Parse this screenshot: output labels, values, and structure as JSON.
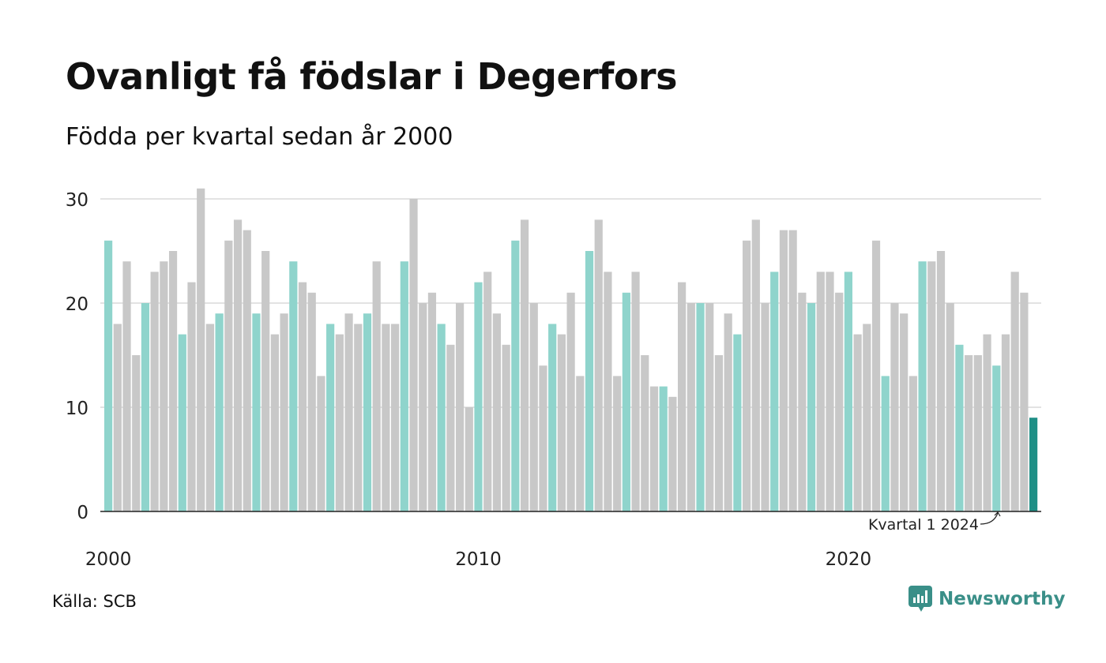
{
  "header": {
    "title": "Ovanligt få födslar i Degerfors",
    "subtitle": "Födda per kvartal sedan år 2000"
  },
  "footer": {
    "source": "Källa: SCB",
    "brand": "Newsworthy"
  },
  "colors": {
    "q1": "#8fd4cc",
    "other": "#c8c8c8",
    "latest": "#1f8f86",
    "grid": "#e3e3e3",
    "axis": "#222222",
    "brand": "#3a8f88"
  },
  "chart_data": {
    "type": "bar",
    "start_year": 2000,
    "values": [
      26,
      18,
      24,
      15,
      20,
      23,
      24,
      25,
      17,
      22,
      31,
      18,
      19,
      26,
      28,
      27,
      19,
      25,
      17,
      19,
      24,
      22,
      21,
      13,
      18,
      17,
      19,
      18,
      19,
      24,
      18,
      18,
      24,
      30,
      20,
      21,
      18,
      16,
      20,
      10,
      22,
      23,
      19,
      16,
      26,
      28,
      20,
      14,
      18,
      17,
      21,
      13,
      25,
      28,
      23,
      13,
      21,
      23,
      15,
      12,
      12,
      11,
      22,
      20,
      20,
      20,
      15,
      19,
      17,
      26,
      28,
      20,
      23,
      27,
      27,
      21,
      20,
      23,
      23,
      21,
      23,
      17,
      18,
      26,
      13,
      20,
      19,
      13,
      24,
      24,
      25,
      20,
      16,
      15,
      15,
      17,
      14,
      17,
      23,
      21,
      9
    ],
    "ylim": [
      0,
      30
    ],
    "yticks": [
      0,
      10,
      20,
      30
    ],
    "xticks": [
      "2000",
      "2010",
      "2020"
    ],
    "annotation": "Kvartal 1 2024",
    "legend": "none",
    "grid": true
  }
}
